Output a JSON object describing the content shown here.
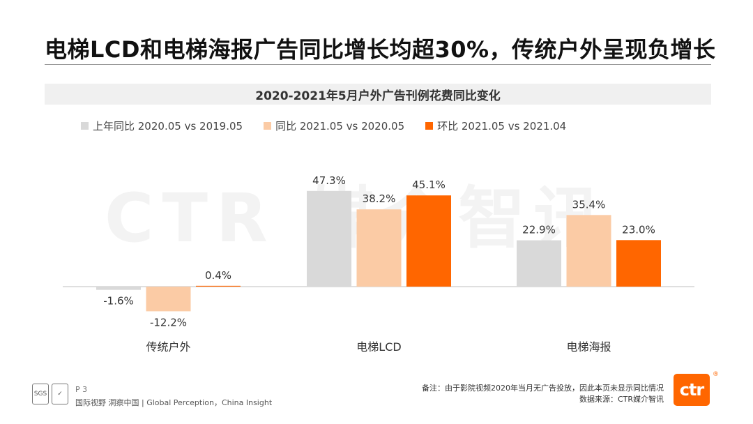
{
  "page": {
    "title": "电梯LCD和电梯海报广告同比增长均超30%，传统户外呈现负增长",
    "watermark": "CTR 媒介智讯",
    "page_number": "P 3",
    "tagline": "国际视野  洞察中国 | Global Perception，China Insight",
    "note": "备注：由于影院视频2020年当月无广告投放，因此本页未显示同比情况",
    "source": "数据来源：CTR媒介智讯",
    "logo_text": "ctr",
    "registered_mark": "®",
    "left_logo_text": "SGS"
  },
  "colors": {
    "series_gray": "#d9d9d9",
    "series_peach": "#fbcba5",
    "series_orange": "#ff6600",
    "axis": "#bfbfbf"
  },
  "chart_data": {
    "type": "bar",
    "title": "2020-2021年5月户外广告刊例花费同比变化",
    "categories": [
      "传统户外",
      "电梯LCD",
      "电梯海报"
    ],
    "series": [
      {
        "name": "上年同比 2020.05 vs 2019.05",
        "values": [
          -1.6,
          47.3,
          22.9
        ],
        "labels": [
          "-1.6%",
          "47.3%",
          "22.9%"
        ],
        "color": "#d9d9d9"
      },
      {
        "name": "同比 2021.05 vs 2020.05",
        "values": [
          -12.2,
          38.2,
          35.4
        ],
        "labels": [
          "-12.2%",
          "38.2%",
          "35.4%"
        ],
        "color": "#fbcba5"
      },
      {
        "name": "环比 2021.05 vs 2021.04",
        "values": [
          0.4,
          45.1,
          23.0
        ],
        "labels": [
          "0.4%",
          "45.1%",
          "23.0%"
        ],
        "color": "#ff6600"
      }
    ],
    "unit": "%",
    "grid": false,
    "legend_position": "top-left"
  }
}
